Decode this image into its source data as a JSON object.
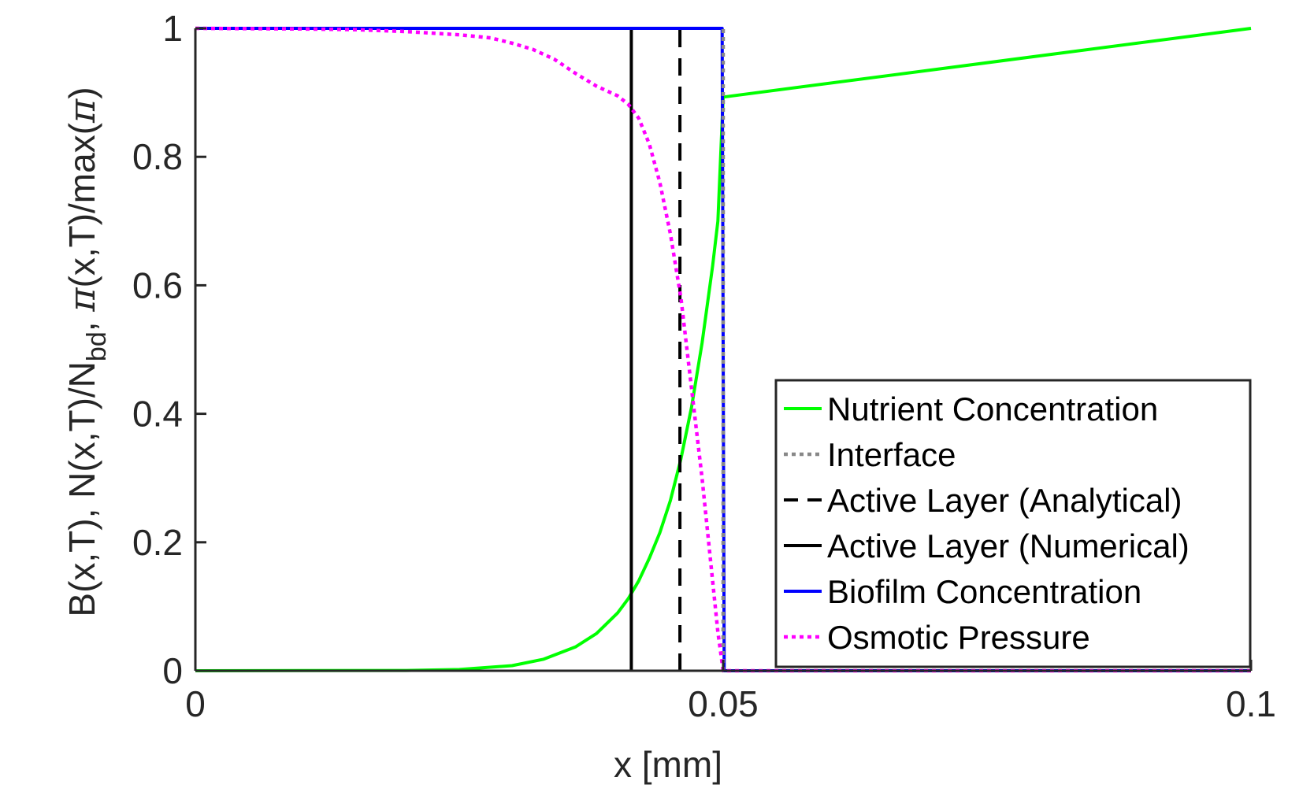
{
  "chart_data": {
    "type": "line",
    "xlabel": "x [mm]",
    "ylabel": {
      "part1": "B(x,T), N(x,T)/N",
      "sub": "bd",
      "part2": ", ",
      "pi1": "π",
      "part3": "(x,T)/max(",
      "pi2": "π",
      "part4": ")"
    },
    "xlim": [
      0,
      0.1
    ],
    "ylim": [
      0,
      1
    ],
    "xticks": [
      0,
      0.05,
      0.1
    ],
    "xtick_labels": [
      "0",
      "0.05",
      "0.1"
    ],
    "yticks": [
      0,
      0.2,
      0.4,
      0.6,
      0.8,
      1
    ],
    "ytick_labels": [
      "0",
      "0.2",
      "0.4",
      "0.6",
      "0.8",
      "1"
    ],
    "grid": false,
    "legend_position": "bottom-right",
    "series": [
      {
        "name": "Nutrient Concentration",
        "color": "#00ff00",
        "style": "solid",
        "x": [
          0,
          0.02,
          0.025,
          0.03,
          0.033,
          0.036,
          0.038,
          0.04,
          0.041,
          0.042,
          0.043,
          0.044,
          0.045,
          0.046,
          0.047,
          0.048,
          0.049,
          0.0495,
          0.05,
          0.1
        ],
        "y": [
          0,
          0.0005,
          0.002,
          0.008,
          0.018,
          0.037,
          0.058,
          0.09,
          0.112,
          0.14,
          0.175,
          0.215,
          0.265,
          0.33,
          0.41,
          0.51,
          0.63,
          0.7,
          0.893,
          1.0
        ]
      },
      {
        "name": "Interface",
        "color": "#888888",
        "style": "dotted",
        "x": [
          0.05,
          0.05
        ],
        "y": [
          0,
          1
        ]
      },
      {
        "name": "Active Layer (Analytical)",
        "color": "#000000",
        "style": "dashed",
        "x": [
          0.0459,
          0.0459
        ],
        "y": [
          0,
          1
        ]
      },
      {
        "name": "Active Layer (Numerical)",
        "color": "#000000",
        "style": "solid",
        "x": [
          0.0413,
          0.0413
        ],
        "y": [
          0,
          1
        ]
      },
      {
        "name": "Biofilm Concentration",
        "color": "#0000ff",
        "style": "solid",
        "x": [
          0,
          0.0499,
          0.0501,
          0.1
        ],
        "y": [
          1,
          1,
          0,
          0
        ]
      },
      {
        "name": "Osmotic Pressure",
        "color": "#ff00ff",
        "style": "dotted",
        "x": [
          0,
          0.01,
          0.015,
          0.02,
          0.025,
          0.028,
          0.03,
          0.032,
          0.034,
          0.036,
          0.038,
          0.04,
          0.041,
          0.042,
          0.043,
          0.044,
          0.045,
          0.046,
          0.047,
          0.048,
          0.049,
          0.0495,
          0.05,
          0.0501,
          0.1
        ],
        "y": [
          1,
          0.999,
          0.998,
          0.995,
          0.99,
          0.985,
          0.977,
          0.967,
          0.952,
          0.93,
          0.91,
          0.895,
          0.882,
          0.86,
          0.82,
          0.76,
          0.68,
          0.58,
          0.44,
          0.3,
          0.14,
          0.06,
          0.0,
          0,
          0
        ]
      }
    ]
  }
}
